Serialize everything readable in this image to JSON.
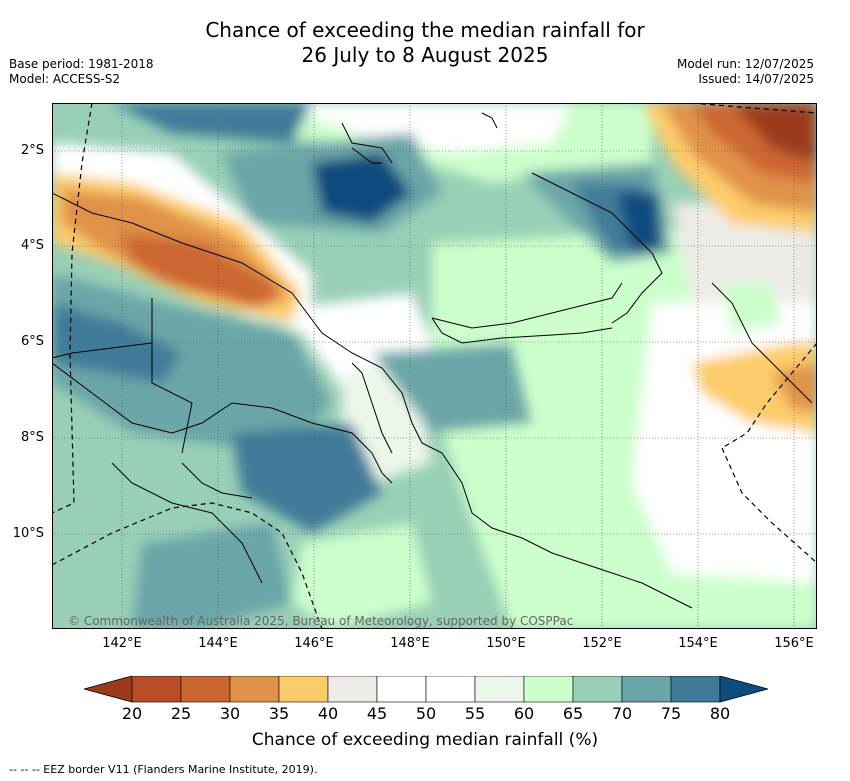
{
  "title_line1": "Chance of exceeding the median rainfall for",
  "title_line2": "26 July to 8 August 2025",
  "base_period": "Base period: 1981-2018",
  "model": "Model: ACCESS-S2",
  "model_run": "Model run: 12/07/2025",
  "issued": "Issued: 14/07/2025",
  "copyright": "© Commonwealth of Australia 2025, Bureau of Meteorology, supported by COSPPac",
  "lon_ticks": [
    "142°E",
    "144°E",
    "146°E",
    "148°E",
    "150°E",
    "152°E",
    "154°E",
    "156°E"
  ],
  "lat_ticks": [
    "2°S",
    "4°S",
    "6°S",
    "8°S",
    "10°S"
  ],
  "colorbar": {
    "title": "Chance of exceeding median rainfall (%)",
    "labels": [
      "20",
      "25",
      "30",
      "35",
      "40",
      "45",
      "50",
      "55",
      "60",
      "65",
      "70",
      "75",
      "80"
    ],
    "colors": [
      "#9c3a1c",
      "#b84d27",
      "#cc6631",
      "#e09248",
      "#fdcc6a",
      "#eeebe7",
      "#ffffff",
      "#ffffff",
      "#ecf6ea",
      "#ccffcc",
      "#99cfb6",
      "#6aa6a8",
      "#3f7b99",
      "#0f4c7e"
    ]
  },
  "legend_line": "-- -- -- EEZ border V11 (Flanders Marine Institute, 2019)."
}
